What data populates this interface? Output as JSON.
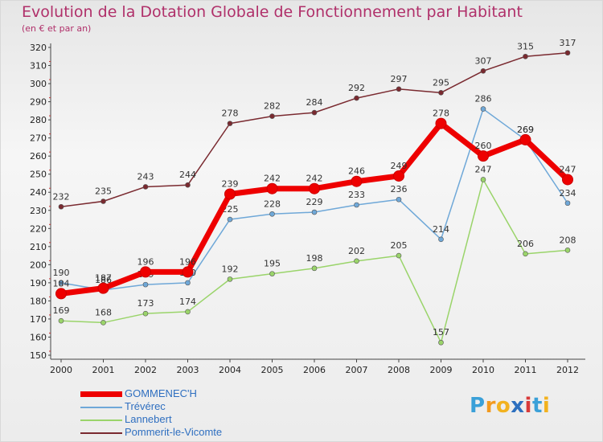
{
  "header": {
    "title": "Evolution de la Dotation Globale de Fonctionnement par Habitant",
    "subtitle": "(en € et par an)"
  },
  "logo": {
    "text": "Proxiti",
    "colors": [
      "#3aa0d8",
      "#f29a1f",
      "#f2b21f",
      "#2c6fbf",
      "#d83a3a",
      "#3aa0d8",
      "#f2b21f"
    ]
  },
  "chart_data": {
    "type": "line",
    "title": "Evolution de la Dotation Globale de Fonctionnement par Habitant",
    "subtitle": "(en € et par an)",
    "xlabel": "",
    "ylabel": "",
    "x": [
      "2000",
      "2001",
      "2002",
      "2003",
      "2004",
      "2005",
      "2006",
      "2007",
      "2008",
      "2009",
      "2010",
      "2011",
      "2012"
    ],
    "ylim": [
      150,
      320
    ],
    "ytick_step": 10,
    "grid": false,
    "legend_position": "bottom-left",
    "series": [
      {
        "name": "Pommerit-le-Vicomte",
        "color": "#7a2a30",
        "values": [
          232,
          235,
          243,
          244,
          278,
          282,
          284,
          292,
          297,
          295,
          307,
          315,
          317
        ]
      },
      {
        "name": "Lannebert",
        "color": "#9ad46a",
        "values": [
          169,
          168,
          173,
          174,
          192,
          195,
          198,
          202,
          205,
          157,
          247,
          206,
          208
        ]
      },
      {
        "name": "Trévérec",
        "color": "#6fa8d8",
        "values": [
          190,
          186,
          189,
          190,
          225,
          228,
          229,
          233,
          236,
          214,
          286,
          269,
          234
        ]
      },
      {
        "name": "GOMMENEC'H",
        "color": "#ee0000",
        "values": [
          184,
          187,
          196,
          196,
          239,
          242,
          242,
          246,
          249,
          278,
          260,
          269,
          247
        ]
      }
    ],
    "legend_order": [
      "GOMMENEC'H",
      "Trévérec",
      "Lannebert",
      "Pommerit-le-Vicomte"
    ]
  }
}
